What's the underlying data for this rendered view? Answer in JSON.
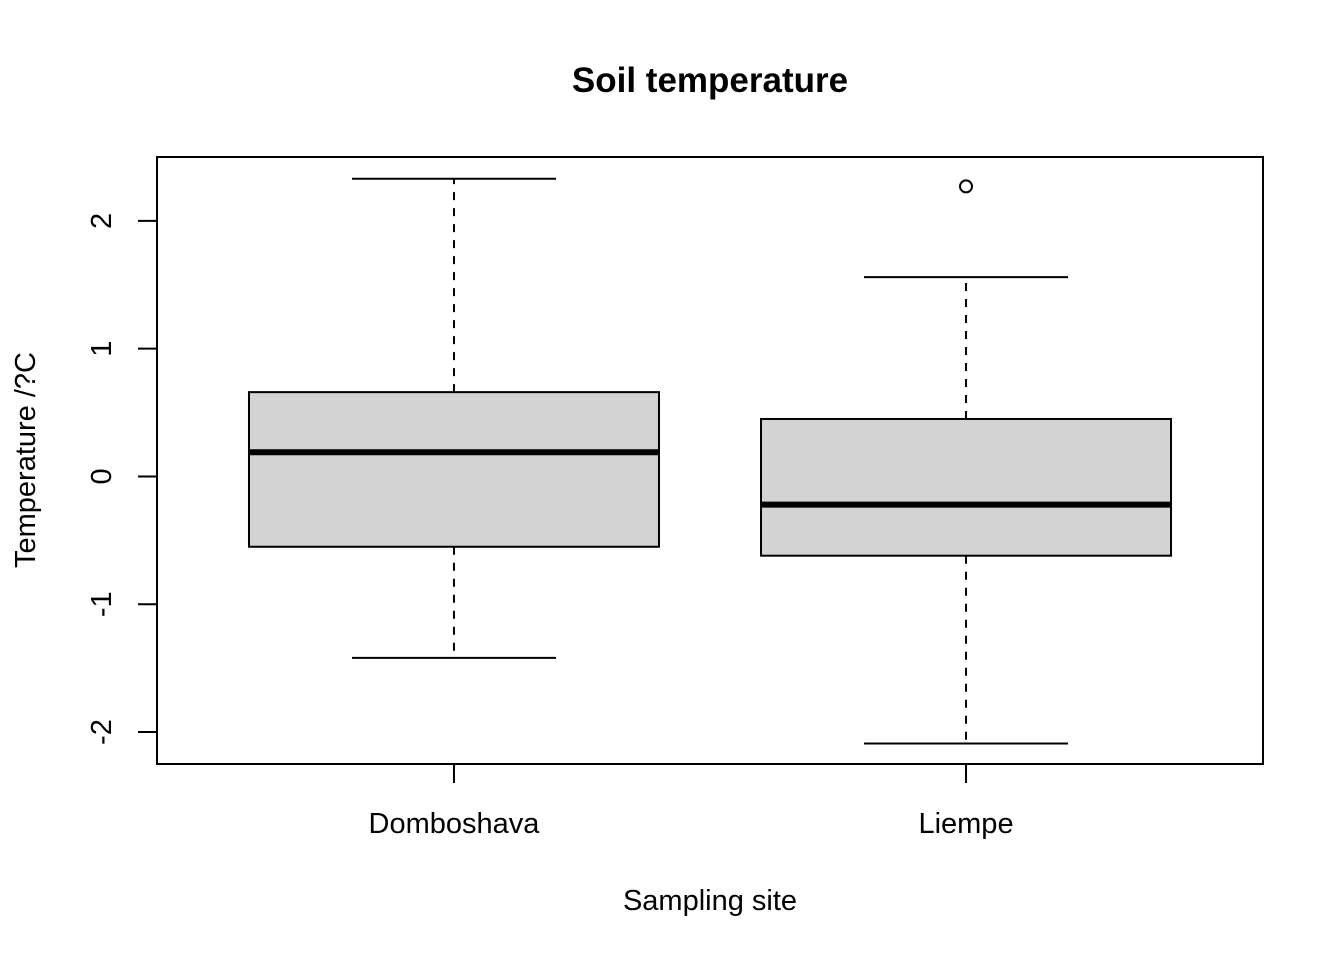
{
  "chart_data": {
    "type": "boxplot",
    "title": "Soil temperature",
    "xlabel": "Sampling site",
    "ylabel": "Temperature /?C",
    "categories": [
      "Domboshava",
      "Liempe"
    ],
    "yticks": [
      -2,
      -1,
      0,
      1,
      2
    ],
    "ylim": [
      -2.25,
      2.5
    ],
    "grid": false,
    "legend": "none",
    "box_fill": "#d3d3d3",
    "boxes": [
      {
        "category": "Domboshava",
        "whisker_low": -1.42,
        "q1": -0.55,
        "median": 0.19,
        "q3": 0.66,
        "whisker_high": 2.33,
        "outliers": []
      },
      {
        "category": "Liempe",
        "whisker_low": -2.09,
        "q1": -0.62,
        "median": -0.22,
        "q3": 0.45,
        "whisker_high": 1.56,
        "outliers": [
          2.27
        ]
      }
    ]
  }
}
